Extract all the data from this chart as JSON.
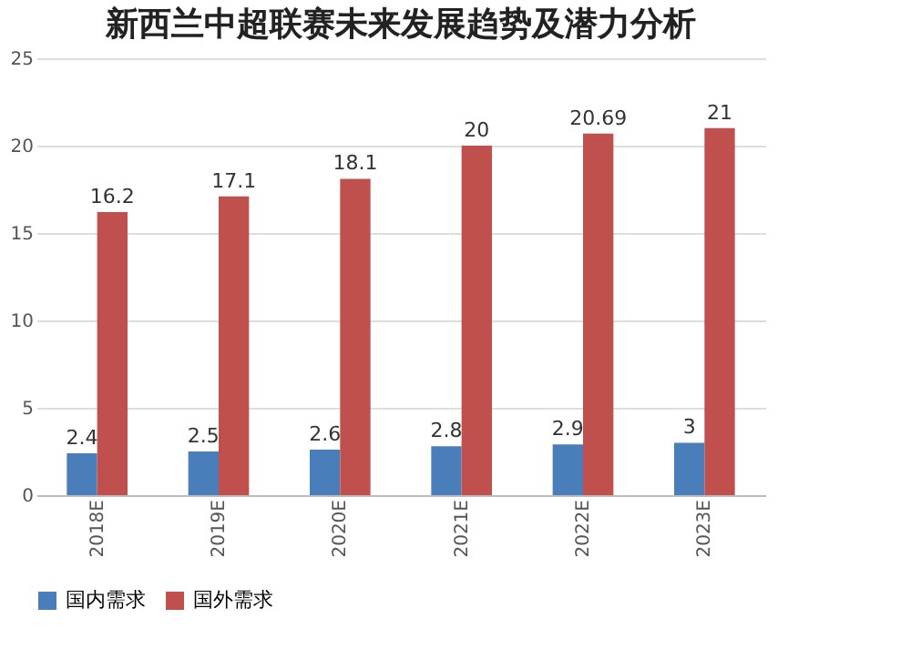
{
  "chart_data": {
    "type": "bar",
    "title": "新西兰中超联赛未来发展趋势及潜力分析",
    "categories": [
      "2018E",
      "2019E",
      "2020E",
      "2021E",
      "2022E",
      "2023E"
    ],
    "series": [
      {
        "name": "国内需求",
        "color": "#4a7ebb",
        "values": [
          2.4,
          2.5,
          2.6,
          2.8,
          2.9,
          3
        ]
      },
      {
        "name": "国外需求",
        "color": "#c0504d",
        "values": [
          16.2,
          17.1,
          18.1,
          20,
          20.69,
          21
        ]
      }
    ],
    "ylim": [
      0,
      25
    ],
    "yticks": [
      0,
      5,
      10,
      15,
      20,
      25
    ],
    "grid": "y",
    "legend": "bottom",
    "data_labels": true
  }
}
